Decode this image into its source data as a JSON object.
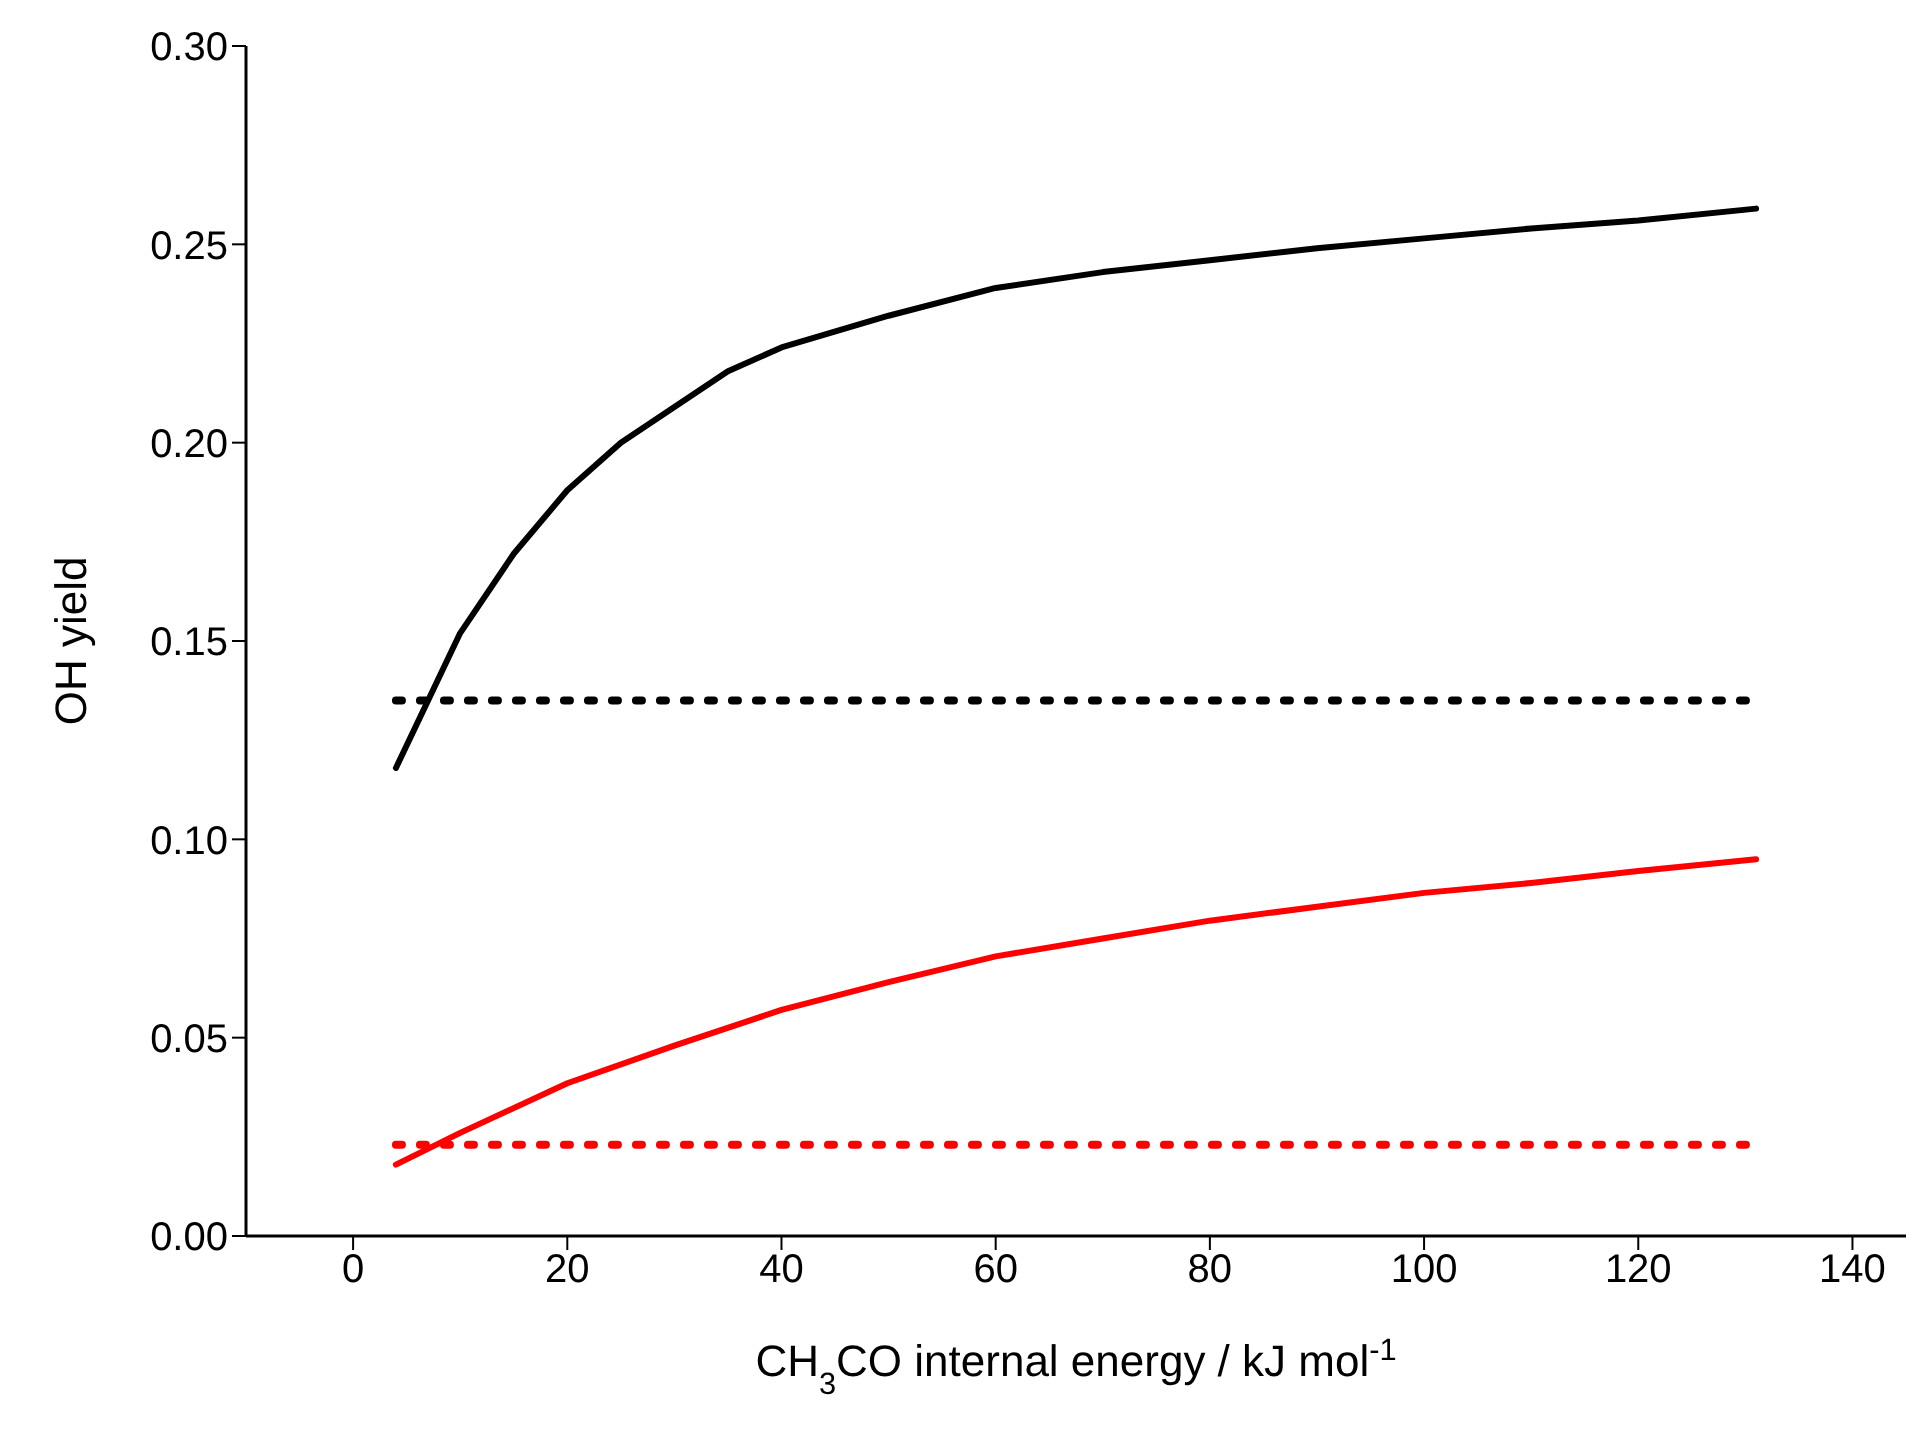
{
  "chart_data": {
    "type": "line",
    "xlabel": "CH$_{3}$CO internal energy / kJ mol$^{-1}$",
    "ylabel": "OH yield",
    "xlim": [
      -10,
      145
    ],
    "xticks": [
      0,
      20,
      40,
      60,
      80,
      100,
      120,
      140
    ],
    "ylim": [
      0,
      0.3
    ],
    "yticks": [
      {
        "value": 0,
        "label": "0.00"
      },
      {
        "value": 0.05,
        "label": "0.05"
      },
      {
        "value": 0.1,
        "label": "0.10"
      },
      {
        "value": 0.15,
        "label": "0.15"
      },
      {
        "value": 0.2,
        "label": "0.20"
      },
      {
        "value": 0.25,
        "label": "0.25"
      },
      {
        "value": 0.3,
        "label": "0.30"
      }
    ],
    "grid": false,
    "legend": false,
    "marker": "none",
    "series": [
      {
        "color": "#000000",
        "line_style": "solid",
        "x": [
          4,
          10,
          15,
          20,
          25,
          30,
          35,
          40,
          50,
          60,
          70,
          80,
          90,
          100,
          110,
          120,
          131
        ],
        "values": [
          0.118,
          0.152,
          0.172,
          0.188,
          0.2,
          0.209,
          0.218,
          0.224,
          0.232,
          0.239,
          0.243,
          0.246,
          0.249,
          0.2515,
          0.254,
          0.256,
          0.259
        ]
      },
      {
        "color": "#000000",
        "line_style": "dotted",
        "x": [
          4,
          131
        ],
        "values": [
          0.135,
          0.135
        ]
      },
      {
        "color": "#ff0000",
        "line_style": "solid",
        "x": [
          4,
          10,
          20,
          30,
          40,
          50,
          60,
          70,
          80,
          90,
          100,
          110,
          120,
          131
        ],
        "values": [
          0.018,
          0.026,
          0.0385,
          0.048,
          0.057,
          0.064,
          0.0705,
          0.075,
          0.0795,
          0.083,
          0.0865,
          0.089,
          0.092,
          0.095
        ]
      },
      {
        "color": "#ff0000",
        "line_style": "dotted",
        "x": [
          4,
          131
        ],
        "values": [
          0.023,
          0.023
        ]
      }
    ]
  }
}
